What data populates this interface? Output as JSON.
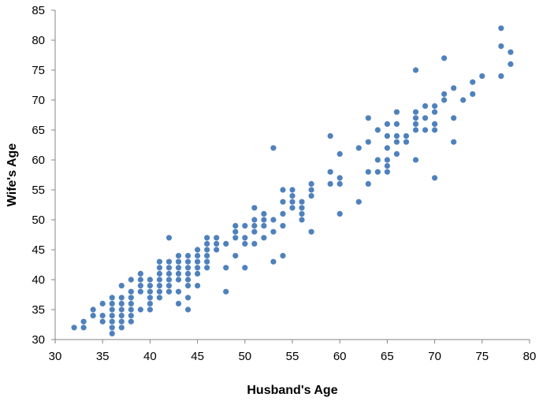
{
  "chart_data": {
    "type": "scatter",
    "title": "",
    "xlabel": "Husband's Age",
    "ylabel": "Wife's Age",
    "xlim": [
      30,
      80
    ],
    "ylim": [
      30,
      85
    ],
    "xticks": [
      30,
      35,
      40,
      45,
      50,
      55,
      60,
      65,
      70,
      75,
      80
    ],
    "yticks": [
      30,
      35,
      40,
      45,
      50,
      55,
      60,
      65,
      70,
      75,
      80,
      85
    ],
    "grid": false,
    "legend": "none",
    "marker_color": "#4F81BD",
    "series": [
      {
        "points": [
          [
            32,
            32
          ],
          [
            33,
            32
          ],
          [
            33,
            33
          ],
          [
            34,
            34
          ],
          [
            34,
            35
          ],
          [
            35,
            33
          ],
          [
            35,
            34
          ],
          [
            35,
            36
          ],
          [
            36,
            31
          ],
          [
            36,
            32
          ],
          [
            36,
            33
          ],
          [
            36,
            34
          ],
          [
            36,
            35
          ],
          [
            36,
            36
          ],
          [
            36,
            37
          ],
          [
            37,
            32
          ],
          [
            37,
            33
          ],
          [
            37,
            34
          ],
          [
            37,
            35
          ],
          [
            37,
            36
          ],
          [
            37,
            37
          ],
          [
            37,
            39
          ],
          [
            38,
            33
          ],
          [
            38,
            34
          ],
          [
            38,
            35
          ],
          [
            38,
            36
          ],
          [
            38,
            37
          ],
          [
            38,
            38
          ],
          [
            38,
            40
          ],
          [
            39,
            35
          ],
          [
            39,
            38
          ],
          [
            39,
            39
          ],
          [
            39,
            40
          ],
          [
            39,
            41
          ],
          [
            40,
            35
          ],
          [
            40,
            36
          ],
          [
            40,
            37
          ],
          [
            40,
            38
          ],
          [
            40,
            39
          ],
          [
            40,
            40
          ],
          [
            41,
            37
          ],
          [
            41,
            38
          ],
          [
            41,
            39
          ],
          [
            41,
            40
          ],
          [
            41,
            41
          ],
          [
            41,
            42
          ],
          [
            41,
            43
          ],
          [
            42,
            38
          ],
          [
            42,
            39
          ],
          [
            42,
            40
          ],
          [
            42,
            41
          ],
          [
            42,
            42
          ],
          [
            42,
            43
          ],
          [
            42,
            47
          ],
          [
            43,
            36
          ],
          [
            43,
            38
          ],
          [
            43,
            40
          ],
          [
            43,
            41
          ],
          [
            43,
            42
          ],
          [
            43,
            43
          ],
          [
            43,
            44
          ],
          [
            44,
            35
          ],
          [
            44,
            37
          ],
          [
            44,
            39
          ],
          [
            44,
            40
          ],
          [
            44,
            41
          ],
          [
            44,
            42
          ],
          [
            44,
            43
          ],
          [
            44,
            44
          ],
          [
            45,
            39
          ],
          [
            45,
            41
          ],
          [
            45,
            42
          ],
          [
            45,
            43
          ],
          [
            45,
            44
          ],
          [
            45,
            45
          ],
          [
            46,
            42
          ],
          [
            46,
            43
          ],
          [
            46,
            44
          ],
          [
            46,
            45
          ],
          [
            46,
            46
          ],
          [
            46,
            47
          ],
          [
            47,
            45
          ],
          [
            47,
            46
          ],
          [
            47,
            47
          ],
          [
            48,
            38
          ],
          [
            48,
            42
          ],
          [
            48,
            46
          ],
          [
            49,
            44
          ],
          [
            49,
            47
          ],
          [
            49,
            48
          ],
          [
            49,
            49
          ],
          [
            50,
            42
          ],
          [
            50,
            46
          ],
          [
            50,
            47
          ],
          [
            50,
            49
          ],
          [
            51,
            46
          ],
          [
            51,
            48
          ],
          [
            51,
            49
          ],
          [
            51,
            50
          ],
          [
            51,
            52
          ],
          [
            52,
            47
          ],
          [
            52,
            49
          ],
          [
            52,
            50
          ],
          [
            52,
            51
          ],
          [
            53,
            43
          ],
          [
            53,
            48
          ],
          [
            53,
            50
          ],
          [
            53,
            62
          ],
          [
            54,
            44
          ],
          [
            54,
            49
          ],
          [
            54,
            51
          ],
          [
            54,
            53
          ],
          [
            54,
            55
          ],
          [
            55,
            52
          ],
          [
            55,
            53
          ],
          [
            55,
            54
          ],
          [
            55,
            55
          ],
          [
            56,
            50
          ],
          [
            56,
            51
          ],
          [
            56,
            52
          ],
          [
            56,
            53
          ],
          [
            57,
            48
          ],
          [
            57,
            54
          ],
          [
            57,
            55
          ],
          [
            57,
            56
          ],
          [
            59,
            56
          ],
          [
            59,
            58
          ],
          [
            59,
            64
          ],
          [
            60,
            51
          ],
          [
            60,
            56
          ],
          [
            60,
            57
          ],
          [
            60,
            61
          ],
          [
            62,
            53
          ],
          [
            62,
            62
          ],
          [
            63,
            56
          ],
          [
            63,
            58
          ],
          [
            63,
            63
          ],
          [
            63,
            67
          ],
          [
            64,
            58
          ],
          [
            64,
            60
          ],
          [
            64,
            65
          ],
          [
            65,
            58
          ],
          [
            65,
            59
          ],
          [
            65,
            60
          ],
          [
            65,
            62
          ],
          [
            65,
            64
          ],
          [
            65,
            66
          ],
          [
            66,
            61
          ],
          [
            66,
            63
          ],
          [
            66,
            64
          ],
          [
            66,
            66
          ],
          [
            66,
            68
          ],
          [
            67,
            63
          ],
          [
            67,
            64
          ],
          [
            68,
            60
          ],
          [
            68,
            65
          ],
          [
            68,
            66
          ],
          [
            68,
            67
          ],
          [
            68,
            68
          ],
          [
            68,
            75
          ],
          [
            69,
            65
          ],
          [
            69,
            67
          ],
          [
            69,
            69
          ],
          [
            70,
            57
          ],
          [
            70,
            65
          ],
          [
            70,
            66
          ],
          [
            70,
            68
          ],
          [
            70,
            69
          ],
          [
            71,
            70
          ],
          [
            71,
            71
          ],
          [
            71,
            77
          ],
          [
            72,
            63
          ],
          [
            72,
            67
          ],
          [
            72,
            72
          ],
          [
            73,
            70
          ],
          [
            74,
            71
          ],
          [
            74,
            73
          ],
          [
            75,
            74
          ],
          [
            77,
            74
          ],
          [
            77,
            79
          ],
          [
            77,
            82
          ],
          [
            78,
            76
          ],
          [
            78,
            78
          ]
        ]
      }
    ]
  }
}
